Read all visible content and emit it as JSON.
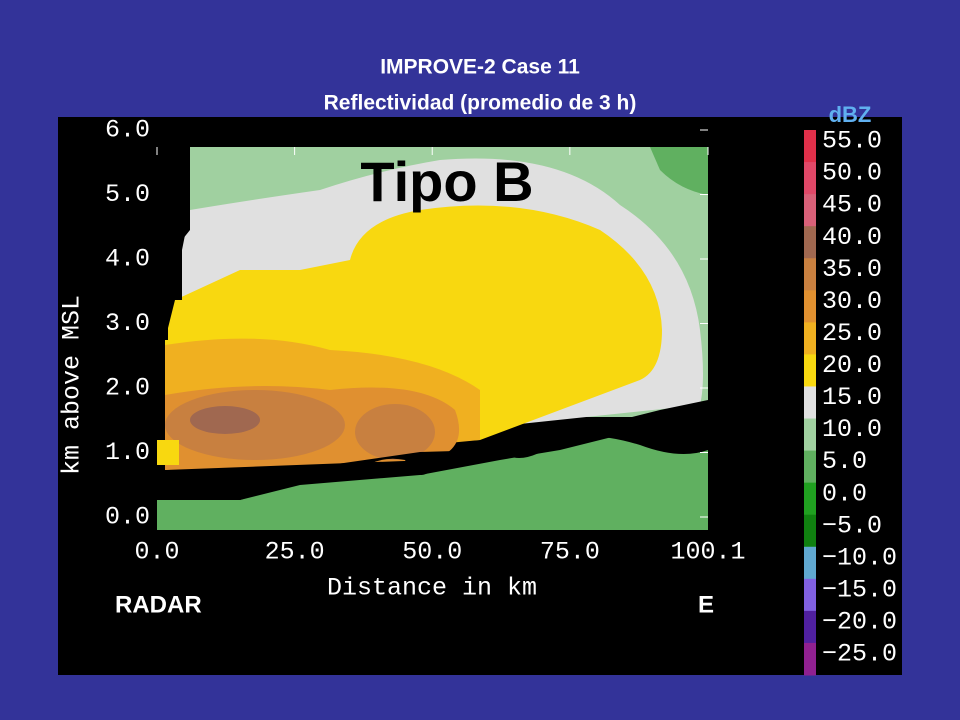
{
  "chart_data": {
    "type": "contour",
    "title": [
      "IMPROVE-2 Case 11",
      "Reflectividad (promedio de 3 h)"
    ],
    "annotation": "Tipo B",
    "xlabel": "Distance in km",
    "ylabel": "km above MSL",
    "xlim": [
      0,
      100.1
    ],
    "ylim": [
      0,
      6
    ],
    "xticks": [
      {
        "value": 0,
        "label": "0.0"
      },
      {
        "value": 25,
        "label": "25.0"
      },
      {
        "value": 50,
        "label": "50.0"
      },
      {
        "value": 75,
        "label": "75.0"
      },
      100.1
    ],
    "yticks": [
      {
        "value": 0,
        "label": "0.0"
      },
      {
        "value": 1,
        "label": "1.0"
      },
      {
        "value": 2,
        "label": "2.0"
      },
      {
        "value": 3,
        "label": "3.0"
      },
      {
        "value": 4,
        "label": "4.0"
      },
      {
        "value": 5,
        "label": "5.0"
      },
      {
        "value": 6,
        "label": "6.0"
      }
    ],
    "colorbar": {
      "label": "dBZ",
      "ticks": [
        {
          "value": 55,
          "label": "55.0"
        },
        {
          "value": 50,
          "label": "50.0"
        },
        {
          "value": 45,
          "label": "45.0"
        },
        {
          "value": 40,
          "label": "40.0"
        },
        {
          "value": 35,
          "label": "35.0"
        },
        {
          "value": 30,
          "label": "30.0"
        },
        {
          "value": 25,
          "label": "25.0"
        },
        {
          "value": 20,
          "label": "20.0"
        },
        {
          "value": 15,
          "label": "15.0"
        },
        {
          "value": 10,
          "label": "10.0"
        },
        {
          "value": 5,
          "label": "5.0"
        },
        {
          "value": 0,
          "label": "0.0"
        },
        {
          "value": -5,
          "label": "−5.0"
        },
        {
          "value": -10,
          "label": "−10.0"
        },
        {
          "value": -15,
          "label": "−15.0"
        },
        {
          "value": -20,
          "label": "−20.0"
        },
        {
          "value": -25,
          "label": "−25.0"
        }
      ],
      "colors": [
        "#e0304a",
        "#e04868",
        "#d86078",
        "#a06850",
        "#c88040",
        "#e09030",
        "#f0b020",
        "#f8d810",
        "#e0e0e0",
        "#a0d0a0",
        "#60b060",
        "#20a020",
        "#108010",
        "#60a8d0",
        "#8060e0",
        "#5020a0",
        "#902090"
      ]
    },
    "left_label": "RADAR",
    "right_label": "E"
  }
}
